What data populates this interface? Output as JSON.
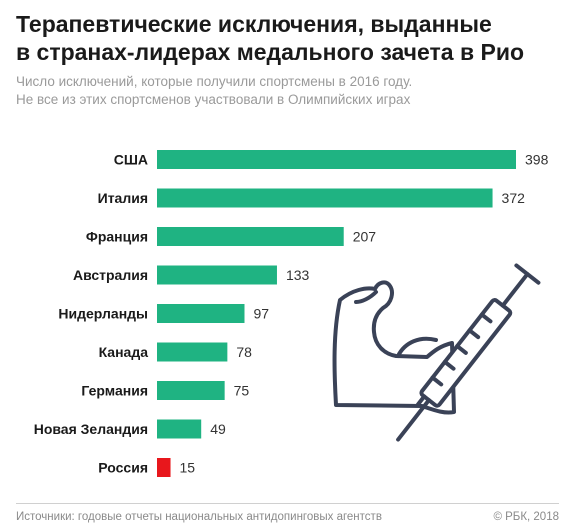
{
  "header": {
    "title_line1": "Терапевтические исключения, выданные",
    "title_line2": "в странах-лидерах медального зачета в Рио",
    "subtitle_line1": "Число исключений, которые получили спортсмены в 2016 году.",
    "subtitle_line2": "Не все из этих спортсменов участвовали в Олимпийских играх"
  },
  "chart_data": {
    "type": "bar",
    "orientation": "horizontal",
    "categories": [
      "США",
      "Италия",
      "Франция",
      "Австралия",
      "Нидерланды",
      "Канада",
      "Германия",
      "Новая Зеландия",
      "Россия"
    ],
    "values": [
      398,
      372,
      207,
      133,
      97,
      78,
      75,
      49,
      15
    ],
    "highlight_category": "Россия",
    "colors": {
      "bar": "#1fb382",
      "highlight": "#e8171c"
    },
    "xlim": [
      0,
      398
    ],
    "grid": false,
    "legend": "none"
  },
  "illustration": {
    "icon": "flexed-arm-with-syringe-icon",
    "color": "#3a4257"
  },
  "footer": {
    "source": "Источники: годовые отчеты национальных антидопинговых агентств",
    "credit": "© РБК, 2018"
  }
}
